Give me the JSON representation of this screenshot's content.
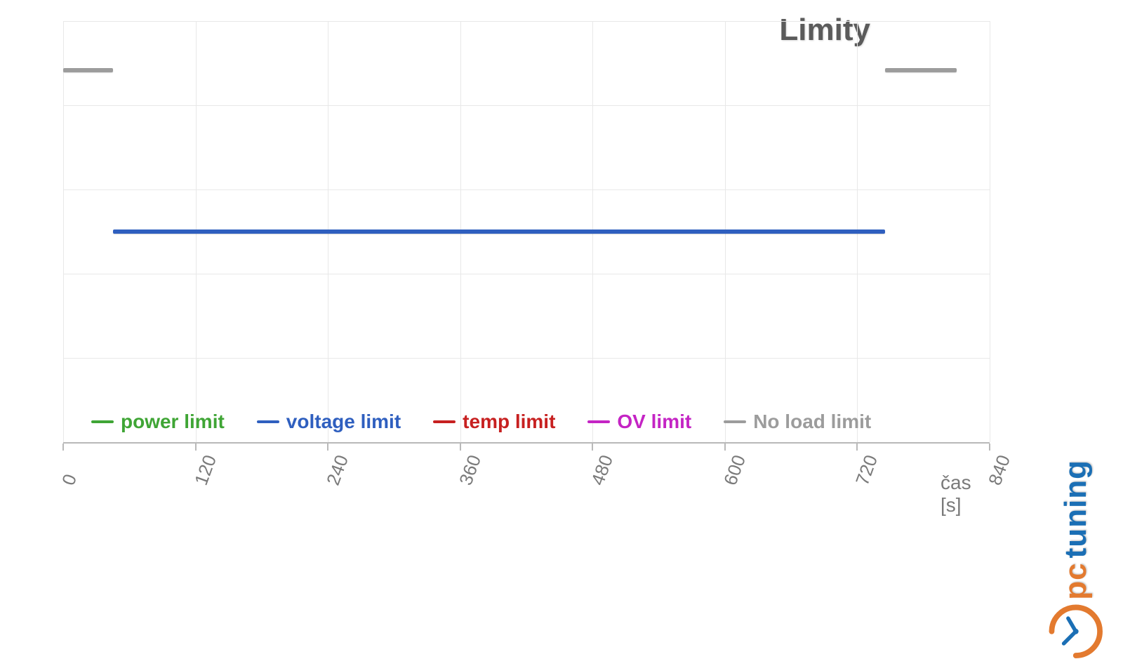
{
  "chart": {
    "type": "line",
    "title": "Limity",
    "xlabel": "čas [s]",
    "xlim": [
      0,
      840
    ],
    "xtick_step": 120,
    "xticks": [
      0,
      120,
      240,
      360,
      480,
      600,
      720,
      840
    ],
    "y_rows": 5,
    "background_color": "#ffffff",
    "grid_color": "#e8e8e8",
    "axis_color": "#b9b9b9",
    "tick_label_color": "#7a7a7a",
    "tick_label_fontsize": 26,
    "title_color": "#5b5b5b",
    "title_fontsize": 44,
    "legend_fontsize": 28,
    "legend_fontweight": 700,
    "line_width": 6,
    "series": [
      {
        "name": "power limit",
        "color": "#3fa535",
        "segments": []
      },
      {
        "name": "voltage limit",
        "color": "#2f5fbf",
        "segments": [
          {
            "x0": 45,
            "x1": 745,
            "y_row": 2.5
          }
        ]
      },
      {
        "name": "temp limit",
        "color": "#c72020",
        "segments": []
      },
      {
        "name": "OV limit",
        "color": "#c424c4",
        "segments": []
      },
      {
        "name": "No load limit",
        "color": "#9c9c9c",
        "segments": [
          {
            "x0": 0,
            "x1": 45,
            "y_row": 4.42
          },
          {
            "x0": 745,
            "x1": 810,
            "y_row": 4.42
          }
        ]
      }
    ]
  },
  "watermark": {
    "text_pc": "pc",
    "text_tuning": "tuning",
    "color_pc": "#e37a2f",
    "color_tuning": "#1b6fb5",
    "clock_color": "#e37a2f",
    "clock_face": "#1b6fb5"
  }
}
